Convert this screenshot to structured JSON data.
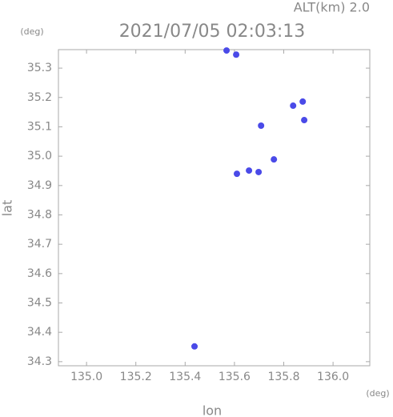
{
  "chart_data": {
    "type": "scatter",
    "title": "2021/07/05 02:03:13",
    "subtitle": "ALT(km) 2.0",
    "x_label": "lon",
    "y_label": "lat",
    "x_unit": "(deg)",
    "y_unit": "(deg)",
    "x": [
      135.568,
      135.607,
      135.838,
      135.877,
      135.883,
      135.708,
      135.76,
      135.659,
      135.698,
      135.61,
      135.438
    ],
    "y": [
      35.36,
      35.346,
      35.172,
      35.186,
      35.123,
      35.104,
      34.989,
      34.951,
      34.946,
      34.94,
      34.352
    ],
    "color": "#4a4ae8",
    "xlim": [
      134.886,
      136.149
    ],
    "ylim": [
      34.286,
      35.363
    ],
    "xticks": [
      {
        "value": 135,
        "label": "135.0"
      },
      135.2,
      135.4,
      135.6,
      135.8,
      {
        "value": 136,
        "label": "136.0"
      }
    ],
    "yticks": [
      34.3,
      34.4,
      34.5,
      34.6,
      34.7,
      34.8,
      34.9,
      {
        "value": 35,
        "label": "35.0"
      },
      35.1,
      35.2,
      35.3
    ],
    "grid": false
  }
}
